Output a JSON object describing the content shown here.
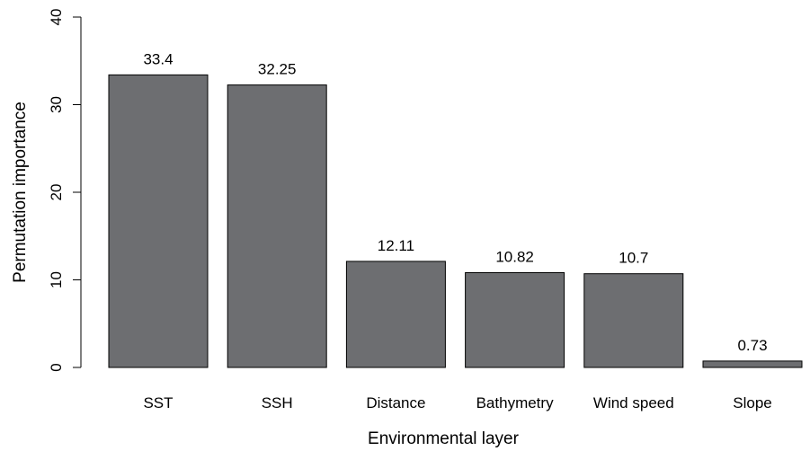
{
  "chart_data": {
    "type": "bar",
    "title": "",
    "xlabel": "Environmental layer",
    "ylabel": "Permutation importance",
    "ylim": [
      0,
      40
    ],
    "yticks": [
      0,
      10,
      20,
      30,
      40
    ],
    "categories": [
      "SST",
      "SSH",
      "Distance",
      "Bathymetry",
      "Wind speed",
      "Slope"
    ],
    "values": [
      33.4,
      32.25,
      12.11,
      10.82,
      10.7,
      0.73
    ],
    "value_labels": [
      "33.4",
      "32.25",
      "12.11",
      "10.82",
      "10.7",
      "0.73"
    ],
    "bar_color": "#6d6e71",
    "grid": false
  }
}
